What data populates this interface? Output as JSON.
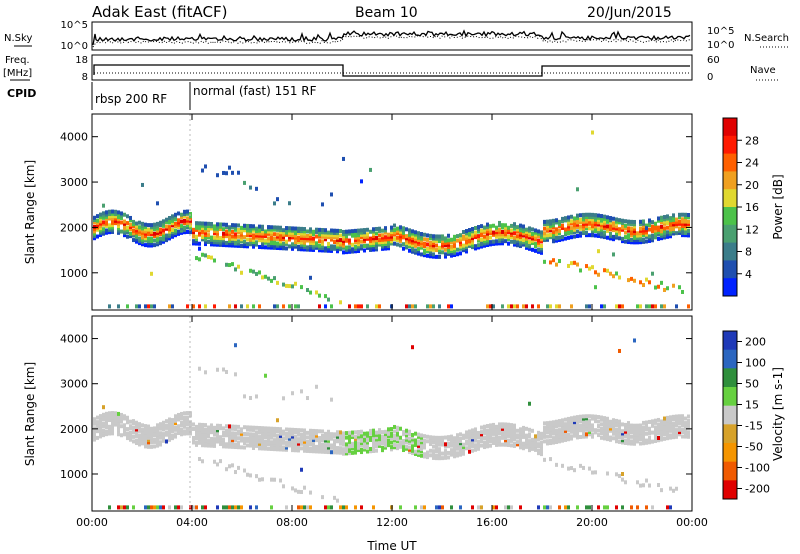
{
  "header": {
    "title": "Adak East (fitACF)",
    "beam": "Beam 10",
    "date": "20/Jun/2015"
  },
  "left_labels": {
    "nsky": "N.Sky",
    "freq": "Freq.",
    "mhz": "[MHz]",
    "cpid": "CPID"
  },
  "right_labels": {
    "nsearch": "N.Search",
    "nave": "Nave"
  },
  "noise_panel": {
    "left_ticks": [
      "10^5",
      "10^0"
    ],
    "right_ticks": [
      "10^5",
      "10^0"
    ]
  },
  "freq_panel": {
    "left_ticks": [
      "18",
      "8"
    ],
    "right_ticks": [
      "60",
      "0"
    ]
  },
  "cpid_panel": {
    "modes": [
      {
        "label": "rbsp 200 RF"
      },
      {
        "label": "normal (fast) 151 RF"
      }
    ]
  },
  "colors": {
    "power": [
      "#0022ff",
      "#1f4fb0",
      "#3b7d8a",
      "#4aa070",
      "#4cc24a",
      "#e0d830",
      "#f0a020",
      "#ff6000",
      "#ff1a00",
      "#e00000"
    ],
    "velocity": [
      "#1f3ab8",
      "#2b66c0",
      "#2f8f3c",
      "#66d040",
      "#c9c9c9",
      "#d7a22a",
      "#f59500",
      "#f05a00",
      "#e00000"
    ]
  },
  "chart_data": [
    {
      "type": "heatmap",
      "name": "power",
      "ylabel": "Slant Range [km]",
      "xlabel": "",
      "y_ticks": [
        "1000",
        "2000",
        "3000",
        "4000"
      ],
      "x_ticks": [
        "00:00",
        "04:00",
        "08:00",
        "12:00",
        "16:00",
        "20:00",
        "00:00"
      ],
      "colorbar_label": "Power [dB]",
      "colorbar_ticks": [
        "4",
        "8",
        "12",
        "16",
        "20",
        "24",
        "28"
      ]
    },
    {
      "type": "heatmap",
      "name": "velocity",
      "ylabel": "Slant Range [km]",
      "xlabel": "Time UT",
      "y_ticks": [
        "1000",
        "2000",
        "3000",
        "4000"
      ],
      "x_ticks": [
        "00:00",
        "04:00",
        "08:00",
        "12:00",
        "16:00",
        "20:00",
        "00:00"
      ],
      "colorbar_label": "Velocity [m s-1]",
      "colorbar_ticks": [
        "200",
        "100",
        "50",
        "15",
        "-15",
        "-50",
        "-100",
        "-200"
      ]
    }
  ]
}
